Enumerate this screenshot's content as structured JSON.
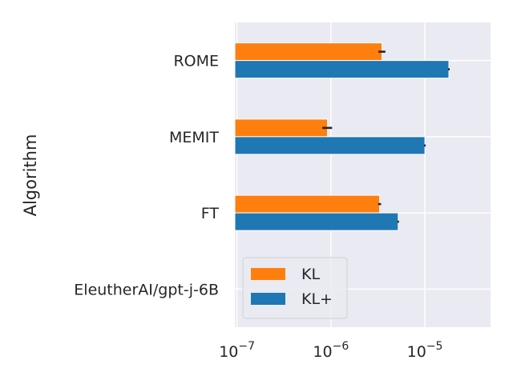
{
  "chart_data": {
    "type": "bar",
    "orientation": "horizontal",
    "ylabel": "Algorithm",
    "xlabel": "",
    "x_scale": "log",
    "xlim": [
      9.5e-08,
      5e-05
    ],
    "x_ticks": [
      {
        "value": 1e-07,
        "base": "10",
        "exp": "−7"
      },
      {
        "value": 1e-06,
        "base": "10",
        "exp": "−6"
      },
      {
        "value": 1e-05,
        "base": "10",
        "exp": "−5"
      }
    ],
    "categories": [
      "ROME",
      "MEMIT",
      "FT",
      "EleutherAI/gpt-j-6B"
    ],
    "series": [
      {
        "name": "KL",
        "color": "#ff7f0e",
        "values": [
          3.5e-06,
          9.2e-07,
          3.3e-06,
          null
        ],
        "errors": [
          3e-07,
          1.1e-07,
          1.2e-07,
          null
        ]
      },
      {
        "name": "KL+",
        "color": "#1f77b4",
        "values": [
          1.8e-05,
          1e-05,
          5.2e-06,
          null
        ],
        "errors": [
          2e-07,
          1e-07,
          1e-07,
          null
        ]
      }
    ],
    "grid": true,
    "legend_position": "lower-left",
    "colors": {
      "background": "#eaeaf2",
      "grid": "#ffffff",
      "text": "#262626",
      "errorbar": "#262626"
    }
  }
}
